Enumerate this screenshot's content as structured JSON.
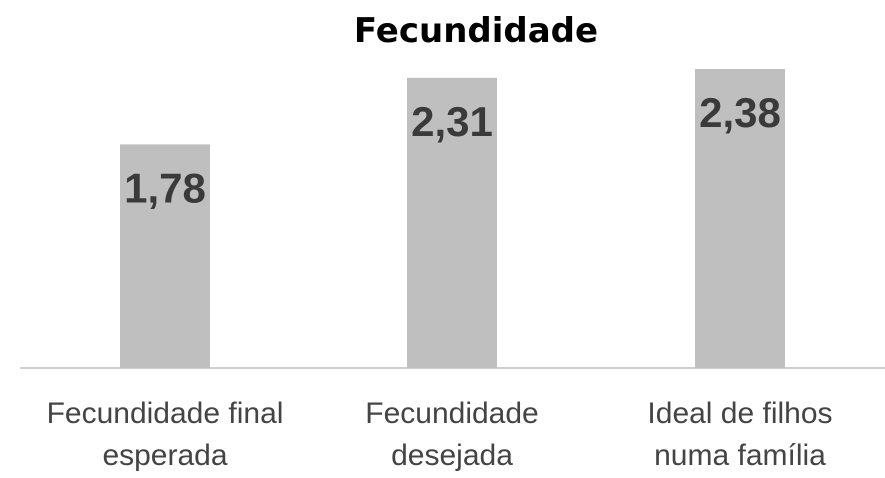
{
  "chart_data": {
    "type": "bar",
    "title": "Fecundidade",
    "categories": [
      "Fecundidade final esperada",
      "Fecundidade desejada",
      "Ideal de filhos numa família"
    ],
    "values": [
      1.78,
      2.31,
      2.38
    ],
    "value_labels": [
      "1,78",
      "2,31",
      "2,38"
    ],
    "color": "#bfbfbf"
  }
}
